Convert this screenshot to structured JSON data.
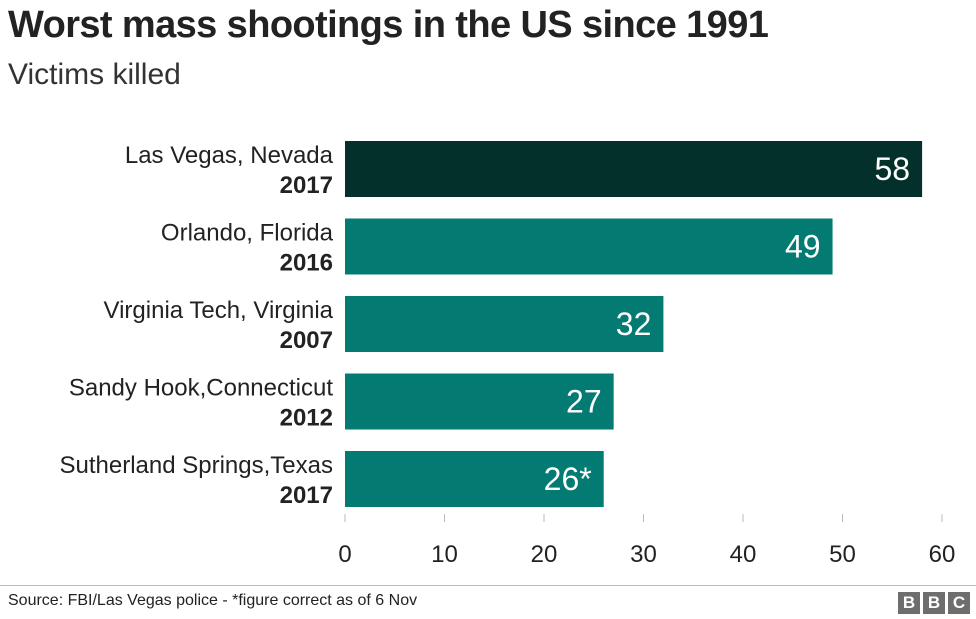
{
  "title": "Worst mass shootings in the US since 1991",
  "subtitle": "Victims killed",
  "source": "Source: FBI/Las Vegas police - *figure correct as of 6 Nov",
  "logo": [
    "B",
    "B",
    "C"
  ],
  "colors": {
    "highlight": "#04302c",
    "bar": "#037a72",
    "axis": "#bbbbbb"
  },
  "chart_data": {
    "type": "bar",
    "orientation": "horizontal",
    "title": "Worst mass shootings in the US since 1991",
    "subtitle": "Victims killed",
    "categories": [
      {
        "place": "Las Vegas, Nevada",
        "year": "2017"
      },
      {
        "place": "Orlando, Florida",
        "year": "2016"
      },
      {
        "place": "Virginia Tech, Virginia",
        "year": "2007"
      },
      {
        "place": "Sandy Hook,Connecticut",
        "year": "2012"
      },
      {
        "place": "Sutherland Springs,Texas",
        "year": "2017"
      }
    ],
    "values": [
      58,
      49,
      32,
      27,
      26
    ],
    "value_labels": [
      "58",
      "49",
      "32",
      "27",
      "26*"
    ],
    "highlight_index": 0,
    "xlim": [
      0,
      60
    ],
    "xticks": [
      0,
      10,
      20,
      30,
      40,
      50,
      60
    ],
    "grid": false
  }
}
